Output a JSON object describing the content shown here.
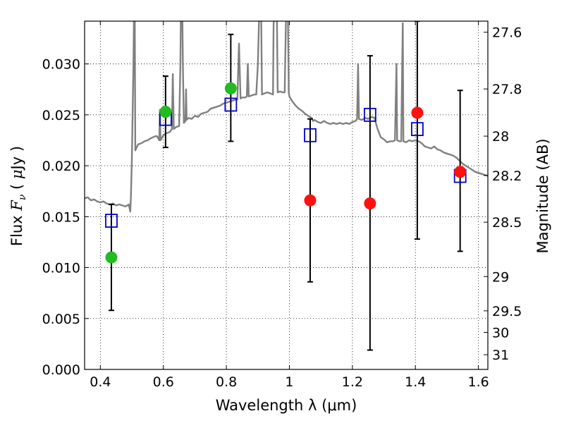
{
  "chart_data": {
    "type": "scatter",
    "xlabel": "Wavelength  λ (μm)",
    "ylabel": "Flux  Fν  ( μJy )",
    "ylabel_parts": {
      "pre": "Flux  ",
      "var": "F",
      "sub": "ν",
      "mid": "  ( ",
      "mu": "μ",
      "post": "Jy )"
    },
    "y2label": "Magnitude (AB)",
    "xlim": [
      0.35,
      1.63
    ],
    "ylim": [
      0.0,
      0.0342
    ],
    "grid": true,
    "x_ticks": [
      {
        "value": 0.4,
        "label": "0.4"
      },
      {
        "value": 0.6,
        "label": "0.6"
      },
      {
        "value": 0.8,
        "label": "0.8"
      },
      {
        "value": 1.0,
        "label": "1"
      },
      {
        "value": 1.2,
        "label": "1.2"
      },
      {
        "value": 1.4,
        "label": "1.4"
      },
      {
        "value": 1.6,
        "label": "1.6"
      }
    ],
    "y_ticks": [
      {
        "value": 0.0,
        "label": "0.000"
      },
      {
        "value": 0.005,
        "label": "0.005"
      },
      {
        "value": 0.01,
        "label": "0.010"
      },
      {
        "value": 0.015,
        "label": "0.015"
      },
      {
        "value": 0.02,
        "label": "0.020"
      },
      {
        "value": 0.025,
        "label": "0.025"
      },
      {
        "value": 0.03,
        "label": "0.030"
      }
    ],
    "y2_ticks": [
      {
        "mag": 27.6,
        "label": "27.6"
      },
      {
        "mag": 27.8,
        "label": "27.8"
      },
      {
        "mag": 28.0,
        "label": "28"
      },
      {
        "mag": 28.2,
        "label": "28.2"
      },
      {
        "mag": 28.5,
        "label": "28.5"
      },
      {
        "mag": 29.0,
        "label": "29"
      },
      {
        "mag": 29.5,
        "label": "29.5"
      },
      {
        "mag": 30.0,
        "label": "30"
      },
      {
        "mag": 31.0,
        "label": "31"
      }
    ],
    "series": [
      {
        "type": "line",
        "color": "#808080",
        "points": [
          [
            0.35,
            0.0168
          ],
          [
            0.36,
            0.0169
          ],
          [
            0.37,
            0.0166
          ],
          [
            0.38,
            0.0167
          ],
          [
            0.39,
            0.0165
          ],
          [
            0.4,
            0.0164
          ],
          [
            0.41,
            0.0165
          ],
          [
            0.42,
            0.0163
          ],
          [
            0.43,
            0.0162
          ],
          [
            0.44,
            0.0163
          ],
          [
            0.45,
            0.0161
          ],
          [
            0.46,
            0.0162
          ],
          [
            0.47,
            0.0161
          ],
          [
            0.48,
            0.016
          ],
          [
            0.49,
            0.0162
          ],
          [
            0.495,
            0.0155
          ],
          [
            0.497,
            0.017
          ],
          [
            0.5,
            0.0205
          ],
          [
            0.505,
            0.03
          ],
          [
            0.507,
            0.036
          ],
          [
            0.509,
            0.036
          ],
          [
            0.511,
            0.0215
          ],
          [
            0.515,
            0.0218
          ],
          [
            0.52,
            0.0221
          ],
          [
            0.53,
            0.0222
          ],
          [
            0.54,
            0.0224
          ],
          [
            0.55,
            0.0225
          ],
          [
            0.56,
            0.0227
          ],
          [
            0.575,
            0.0229
          ],
          [
            0.58,
            0.0229
          ],
          [
            0.587,
            0.0225
          ],
          [
            0.589,
            0.0255
          ],
          [
            0.591,
            0.0225
          ],
          [
            0.6,
            0.023
          ],
          [
            0.61,
            0.0232
          ],
          [
            0.62,
            0.0233
          ],
          [
            0.627,
            0.0236
          ],
          [
            0.63,
            0.029
          ],
          [
            0.633,
            0.0236
          ],
          [
            0.64,
            0.0238
          ],
          [
            0.65,
            0.0239
          ],
          [
            0.654,
            0.03
          ],
          [
            0.656,
            0.036
          ],
          [
            0.66,
            0.036
          ],
          [
            0.662,
            0.03
          ],
          [
            0.665,
            0.0242
          ],
          [
            0.67,
            0.0244
          ],
          [
            0.672,
            0.0275
          ],
          [
            0.674,
            0.0245
          ],
          [
            0.68,
            0.0247
          ],
          [
            0.69,
            0.0246
          ],
          [
            0.7,
            0.0249
          ],
          [
            0.71,
            0.0248
          ],
          [
            0.72,
            0.0251
          ],
          [
            0.73,
            0.0252
          ],
          [
            0.74,
            0.0253
          ],
          [
            0.75,
            0.0256
          ],
          [
            0.76,
            0.0257
          ],
          [
            0.77,
            0.0258
          ],
          [
            0.78,
            0.0259
          ],
          [
            0.79,
            0.0261
          ],
          [
            0.8,
            0.0262
          ],
          [
            0.81,
            0.0263
          ],
          [
            0.82,
            0.0264
          ],
          [
            0.83,
            0.0265
          ],
          [
            0.835,
            0.0265
          ],
          [
            0.84,
            0.032
          ],
          [
            0.845,
            0.0266
          ],
          [
            0.85,
            0.0267
          ],
          [
            0.86,
            0.0267
          ],
          [
            0.865,
            0.0268
          ],
          [
            0.868,
            0.03
          ],
          [
            0.871,
            0.0268
          ],
          [
            0.88,
            0.0269
          ],
          [
            0.89,
            0.027
          ],
          [
            0.895,
            0.027
          ],
          [
            0.9,
            0.03
          ],
          [
            0.905,
            0.036
          ],
          [
            0.91,
            0.036
          ],
          [
            0.913,
            0.027
          ],
          [
            0.92,
            0.0271
          ],
          [
            0.93,
            0.0272
          ],
          [
            0.94,
            0.0271
          ],
          [
            0.948,
            0.027
          ],
          [
            0.95,
            0.034
          ],
          [
            0.955,
            0.036
          ],
          [
            0.96,
            0.036
          ],
          [
            0.963,
            0.0272
          ],
          [
            0.97,
            0.0273
          ],
          [
            0.98,
            0.0272
          ],
          [
            0.985,
            0.0272
          ],
          [
            0.99,
            0.036
          ],
          [
            0.995,
            0.036
          ],
          [
            0.998,
            0.0272
          ],
          [
            1.0,
            0.0268
          ],
          [
            1.01,
            0.0263
          ],
          [
            1.02,
            0.0259
          ],
          [
            1.03,
            0.0256
          ],
          [
            1.04,
            0.0254
          ],
          [
            1.05,
            0.0251
          ],
          [
            1.06,
            0.0249
          ],
          [
            1.07,
            0.0247
          ],
          [
            1.075,
            0.0244
          ],
          [
            1.08,
            0.0245
          ],
          [
            1.09,
            0.0243
          ],
          [
            1.1,
            0.0242
          ],
          [
            1.11,
            0.0244
          ],
          [
            1.12,
            0.0242
          ],
          [
            1.13,
            0.0241
          ],
          [
            1.14,
            0.0242
          ],
          [
            1.15,
            0.0241
          ],
          [
            1.16,
            0.0242
          ],
          [
            1.17,
            0.0241
          ],
          [
            1.18,
            0.0242
          ],
          [
            1.19,
            0.0241
          ],
          [
            1.2,
            0.0243
          ],
          [
            1.21,
            0.0244
          ],
          [
            1.215,
            0.0246
          ],
          [
            1.218,
            0.03
          ],
          [
            1.221,
            0.0246
          ],
          [
            1.23,
            0.0245
          ],
          [
            1.24,
            0.0247
          ],
          [
            1.25,
            0.0246
          ],
          [
            1.26,
            0.0248
          ],
          [
            1.27,
            0.0247
          ],
          [
            1.28,
            0.0236
          ],
          [
            1.29,
            0.0228
          ],
          [
            1.3,
            0.0226
          ],
          [
            1.31,
            0.0223
          ],
          [
            1.32,
            0.0224
          ],
          [
            1.33,
            0.0224
          ],
          [
            1.335,
            0.0225
          ],
          [
            1.338,
            0.027
          ],
          [
            1.34,
            0.03
          ],
          [
            1.342,
            0.0225
          ],
          [
            1.35,
            0.0224
          ],
          [
            1.355,
            0.0224
          ],
          [
            1.358,
            0.03
          ],
          [
            1.36,
            0.034
          ],
          [
            1.362,
            0.0224
          ],
          [
            1.37,
            0.0223
          ],
          [
            1.38,
            0.0225
          ],
          [
            1.39,
            0.0224
          ],
          [
            1.4,
            0.0225
          ],
          [
            1.41,
            0.0224
          ],
          [
            1.42,
            0.0222
          ],
          [
            1.43,
            0.0219
          ],
          [
            1.44,
            0.0218
          ],
          [
            1.45,
            0.0217
          ],
          [
            1.46,
            0.0219
          ],
          [
            1.47,
            0.0216
          ],
          [
            1.48,
            0.0215
          ],
          [
            1.49,
            0.0213
          ],
          [
            1.5,
            0.0212
          ],
          [
            1.51,
            0.0211
          ],
          [
            1.52,
            0.021
          ],
          [
            1.53,
            0.0208
          ],
          [
            1.54,
            0.0205
          ],
          [
            1.55,
            0.0202
          ],
          [
            1.56,
            0.02
          ],
          [
            1.57,
            0.0198
          ],
          [
            1.58,
            0.0196
          ],
          [
            1.59,
            0.0194
          ],
          [
            1.6,
            0.0193
          ],
          [
            1.61,
            0.0192
          ],
          [
            1.62,
            0.0191
          ],
          [
            1.63,
            0.019
          ]
        ]
      },
      {
        "type": "errorbar",
        "color": "#000000",
        "points": [
          {
            "x": 0.435,
            "lo": 0.0058,
            "hi": 0.0162
          },
          {
            "x": 0.607,
            "lo": 0.0218,
            "hi": 0.0288
          },
          {
            "x": 0.814,
            "lo": 0.0224,
            "hi": 0.0329
          },
          {
            "x": 1.066,
            "lo": 0.0086,
            "hi": 0.0246
          },
          {
            "x": 1.256,
            "lo": 0.0019,
            "hi": 0.0308
          },
          {
            "x": 1.406,
            "lo": 0.0128,
            "hi": 0.0342
          },
          {
            "x": 1.542,
            "lo": 0.0116,
            "hi": 0.0274
          }
        ]
      },
      {
        "type": "square",
        "color": "#0000cc",
        "points": [
          [
            0.435,
            0.0146
          ],
          [
            0.607,
            0.0246
          ],
          [
            0.814,
            0.026
          ],
          [
            1.066,
            0.023
          ],
          [
            1.256,
            0.025
          ],
          [
            1.406,
            0.0236
          ],
          [
            1.542,
            0.019
          ]
        ]
      },
      {
        "type": "circle",
        "color": "#22bb22",
        "points": [
          [
            0.435,
            0.011
          ],
          [
            0.607,
            0.0253
          ],
          [
            0.814,
            0.0276
          ]
        ]
      },
      {
        "type": "circle",
        "color": "#ff1111",
        "points": [
          [
            1.066,
            0.0166
          ],
          [
            1.256,
            0.0163
          ],
          [
            1.406,
            0.0252
          ],
          [
            1.542,
            0.0194
          ]
        ]
      }
    ]
  }
}
